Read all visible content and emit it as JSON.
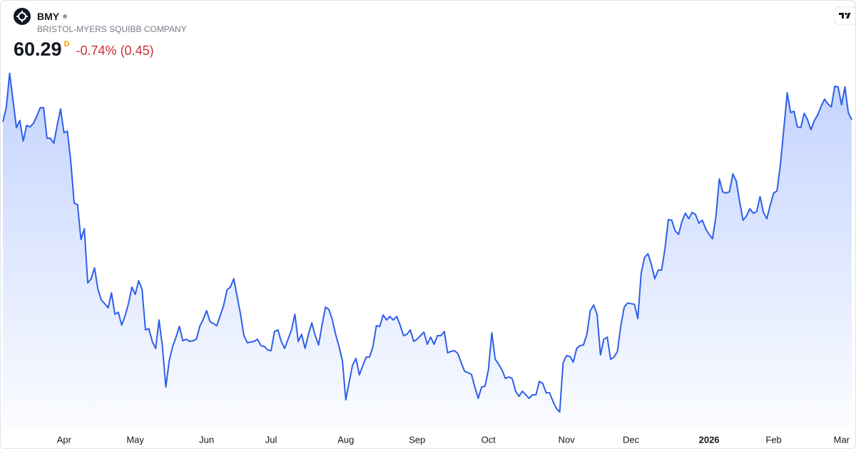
{
  "header": {
    "symbol": "BMY",
    "company": "BRISTOL-MYERS SQUIBB COMPANY",
    "price": "60.29",
    "interval": "D",
    "change": "-0.74% (0.45)"
  },
  "chart_data": {
    "type": "area",
    "color": "#2f5fe8",
    "values": [
      60.16,
      61.0,
      63.04,
      61.43,
      59.82,
      60.24,
      59.02,
      59.95,
      59.86,
      60.07,
      60.5,
      61.0,
      61.0,
      59.19,
      59.19,
      58.89,
      59.95,
      60.92,
      59.52,
      59.61,
      57.83,
      55.34,
      55.25,
      53.18,
      53.81,
      50.6,
      50.85,
      51.49,
      50.22,
      49.58,
      49.37,
      49.12,
      50.01,
      48.74,
      48.86,
      48.1,
      48.65,
      49.37,
      50.35,
      49.92,
      50.73,
      50.22,
      47.81,
      47.89,
      47.13,
      46.71,
      48.4,
      46.83,
      44.42,
      45.99,
      46.83,
      47.38,
      48.02,
      47.17,
      47.26,
      47.13,
      47.17,
      47.26,
      48.02,
      48.44,
      48.95,
      48.31,
      48.19,
      48.06,
      48.65,
      49.25,
      50.18,
      50.35,
      50.85,
      49.8,
      48.74,
      47.47,
      47.05,
      47.09,
      47.13,
      47.26,
      46.88,
      46.83,
      46.62,
      46.58,
      47.72,
      47.81,
      47.13,
      46.71,
      47.26,
      47.81,
      48.74,
      47.13,
      47.55,
      46.71,
      47.55,
      48.23,
      47.47,
      46.92,
      48.1,
      49.16,
      49.03,
      48.44,
      47.55,
      46.83,
      45.99,
      43.66,
      44.72,
      45.73,
      46.12,
      45.14,
      45.69,
      46.2,
      46.2,
      46.83,
      48.06,
      48.02,
      48.7,
      48.4,
      48.61,
      48.4,
      48.61,
      48.1,
      47.47,
      47.55,
      47.81,
      47.13,
      47.26,
      47.47,
      47.68,
      46.96,
      47.38,
      46.96,
      47.47,
      47.47,
      47.72,
      46.45,
      46.54,
      46.58,
      46.41,
      45.86,
      45.35,
      45.27,
      45.18,
      44.42,
      43.75,
      44.42,
      44.47,
      45.44,
      47.64,
      46.07,
      45.78,
      45.44,
      44.93,
      45.02,
      44.93,
      44.17,
      43.87,
      44.17,
      43.96,
      43.75,
      43.96,
      43.96,
      44.76,
      44.63,
      44.08,
      44.08,
      43.58,
      43.15,
      42.94,
      45.86,
      46.28,
      46.24,
      45.9,
      46.71,
      46.88,
      46.92,
      47.55,
      48.95,
      49.29,
      48.74,
      46.33,
      47.26,
      47.38,
      46.07,
      46.2,
      46.54,
      48.06,
      49.16,
      49.41,
      49.37,
      49.33,
      48.48,
      51.19,
      52.12,
      52.33,
      51.7,
      50.85,
      51.36,
      51.36,
      52.63,
      54.36,
      54.32,
      53.69,
      53.48,
      54.24,
      54.74,
      54.41,
      54.79,
      54.66,
      54.15,
      54.32,
      53.81,
      53.48,
      53.22,
      54.53,
      56.77,
      56.01,
      55.93,
      56.01,
      57.07,
      56.65,
      55.42,
      54.32,
      54.58,
      55.0,
      54.74,
      54.83,
      55.72,
      54.79,
      54.41,
      55.21,
      55.93,
      56.06,
      57.62,
      59.74,
      61.89,
      60.71,
      60.79,
      59.86,
      59.82,
      60.67,
      60.29,
      59.69,
      60.24,
      60.58,
      61.09,
      61.51,
      61.22,
      61.05,
      62.27,
      62.23,
      61.17,
      62.23,
      60.71,
      60.29
    ],
    "xlim": [
      0,
      250
    ],
    "xticks": [
      {
        "value": 18,
        "label": "Apr"
      },
      {
        "value": 39,
        "label": "May"
      },
      {
        "value": 60,
        "label": "Jun"
      },
      {
        "value": 79,
        "label": "Jul"
      },
      {
        "value": 101,
        "label": "Aug"
      },
      {
        "value": 122,
        "label": "Sep"
      },
      {
        "value": 143,
        "label": "Oct"
      },
      {
        "value": 166,
        "label": "Nov"
      },
      {
        "value": 185,
        "label": "Dec"
      },
      {
        "value": 208,
        "label": "2026"
      },
      {
        "value": 227,
        "label": "Feb"
      },
      {
        "value": 247,
        "label": "Mar"
      }
    ],
    "ylim": [
      41.97,
      67.35
    ],
    "grid": false
  }
}
